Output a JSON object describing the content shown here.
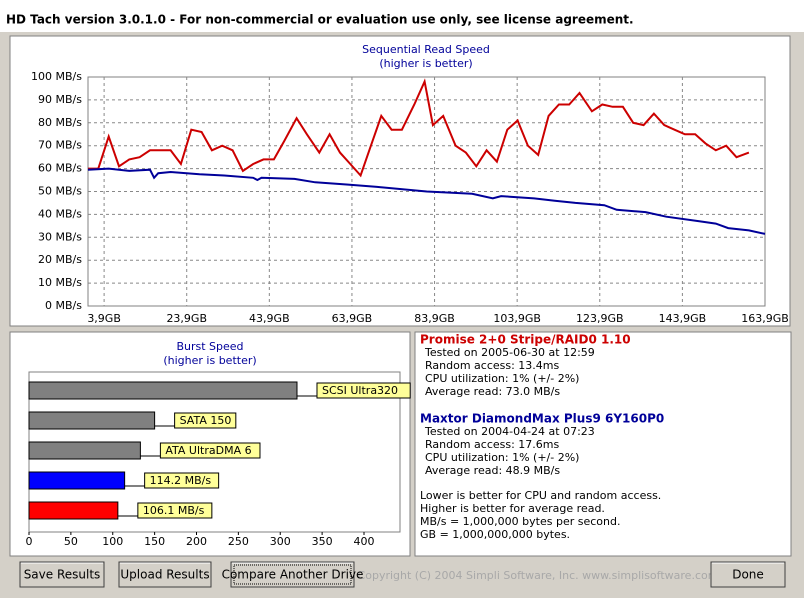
{
  "window": {
    "title": "HD Tach version 3.0.1.0  - For non-commercial or evaluation use only, see license agreement."
  },
  "chart_data": [
    {
      "type": "line",
      "title": "Sequential Read Speed",
      "subtitle": "(higher is better)",
      "xlim": [
        0,
        163.9
      ],
      "ylim": [
        0,
        100
      ],
      "grid": true,
      "xticks": [
        {
          "value": 3.9,
          "label": "3,9GB"
        },
        {
          "value": 23.9,
          "label": "23,9GB"
        },
        {
          "value": 43.9,
          "label": "43,9GB"
        },
        {
          "value": 63.9,
          "label": "63,9GB"
        },
        {
          "value": 83.9,
          "label": "83,9GB"
        },
        {
          "value": 103.9,
          "label": "103,9GB"
        },
        {
          "value": 123.9,
          "label": "123,9GB"
        },
        {
          "value": 143.9,
          "label": "143,9GB"
        },
        {
          "value": 163.9,
          "label": "163,9GB"
        }
      ],
      "yticks": [
        {
          "value": 0,
          "label": "0 MB/s"
        },
        {
          "value": 10,
          "label": "10 MB/s"
        },
        {
          "value": 20,
          "label": "20 MB/s"
        },
        {
          "value": 30,
          "label": "30 MB/s"
        },
        {
          "value": 40,
          "label": "40 MB/s"
        },
        {
          "value": 50,
          "label": "50 MB/s"
        },
        {
          "value": 60,
          "label": "60 MB/s"
        },
        {
          "value": 70,
          "label": "70 MB/s"
        },
        {
          "value": 80,
          "label": "80 MB/s"
        },
        {
          "value": 90,
          "label": "90 MB/s"
        },
        {
          "value": 100,
          "label": "100 MB/s"
        }
      ],
      "series": [
        {
          "color": "#cc0000",
          "x": [
            0,
            2.5,
            5,
            7.5,
            10,
            12.5,
            15,
            20,
            22.5,
            25,
            27.5,
            30,
            32.5,
            35,
            37.5,
            40,
            42.5,
            45,
            47.5,
            50.5,
            53,
            56,
            58.5,
            61,
            63.5,
            66,
            68.5,
            71,
            73.5,
            76,
            79,
            81.5,
            83.5,
            86,
            89,
            91.5,
            94,
            96.5,
            99,
            101.5,
            104,
            106.5,
            109,
            111.5,
            114,
            116.5,
            119,
            122,
            124.5,
            127,
            129.5,
            132,
            134.5,
            137,
            139.5,
            142,
            144.5,
            147,
            149.5,
            152,
            154.5,
            157,
            160
          ],
          "values": [
            60,
            60,
            74,
            61,
            64,
            65,
            68,
            68,
            62,
            77,
            76,
            68,
            70,
            68,
            59,
            62,
            64,
            64,
            72,
            82,
            75,
            67,
            75,
            67,
            62,
            57,
            70,
            83,
            77,
            77,
            88,
            98,
            79,
            83,
            70,
            67,
            61,
            68,
            63,
            77,
            81,
            70,
            66,
            83,
            88,
            88,
            93,
            85,
            88,
            87,
            87,
            80,
            79,
            84,
            79,
            77,
            75,
            75,
            71,
            68,
            70,
            65,
            67
          ]
        },
        {
          "color": "#000099",
          "x": [
            0,
            5,
            10,
            15,
            16,
            17,
            20,
            27,
            33,
            40,
            41,
            42,
            50,
            55,
            63,
            70,
            82,
            93,
            98,
            100,
            108,
            113,
            118,
            125,
            128,
            135,
            140,
            148,
            152,
            155,
            160,
            163.9
          ],
          "values": [
            59.5,
            60,
            59,
            59.5,
            56,
            58,
            58.5,
            57.5,
            57,
            56,
            55,
            56,
            55.5,
            54,
            53,
            52,
            50,
            49,
            47,
            48,
            47,
            46,
            45,
            44,
            42,
            41,
            39,
            37,
            36,
            34,
            33,
            31.5
          ]
        }
      ]
    },
    {
      "type": "hbar",
      "title": "Burst Speed",
      "subtitle": "(higher is better)",
      "xlim": [
        0,
        443
      ],
      "xticks": [
        0,
        50,
        100,
        150,
        200,
        250,
        300,
        350,
        400
      ],
      "categories": [
        "SCSI Ultra320",
        "SATA 150",
        "ATA UltraDMA 6",
        null,
        null
      ],
      "values": [
        320,
        150,
        133,
        114.2,
        106.1
      ],
      "value_labels": [
        null,
        null,
        null,
        "114.2 MB/s",
        "106.1 MB/s"
      ],
      "colors": [
        "#808080",
        "#808080",
        "#808080",
        "#0000ff",
        "#ff0000"
      ]
    }
  ],
  "results": [
    {
      "name": "Promise 2+0 Stripe/RAID0 1.10",
      "color": "#cc0000",
      "lines": [
        "Tested on 2005-06-30 at 12:59",
        "Random access: 13.4ms",
        "CPU utilization: 1% (+/- 2%)",
        "Average read: 73.0 MB/s"
      ]
    },
    {
      "name": "Maxtor DiamondMax Plus9 6Y160P0",
      "color": "#000099",
      "lines": [
        "Tested on 2004-04-24 at 07:23",
        "Random access: 17.6ms",
        "CPU utilization: 1% (+/- 2%)",
        "Average read: 48.9 MB/s"
      ]
    }
  ],
  "notes": [
    "Lower is better for CPU and random access.",
    "Higher is better for average read.",
    "MB/s = 1,000,000 bytes per second.",
    "GB = 1,000,000,000 bytes."
  ],
  "buttons": [
    "Save Results",
    "Upload Results",
    "Compare Another Drive",
    "Done"
  ],
  "copyright": "Copyright (C) 2004 Simpli Software, Inc. www.simplisoftware.com"
}
